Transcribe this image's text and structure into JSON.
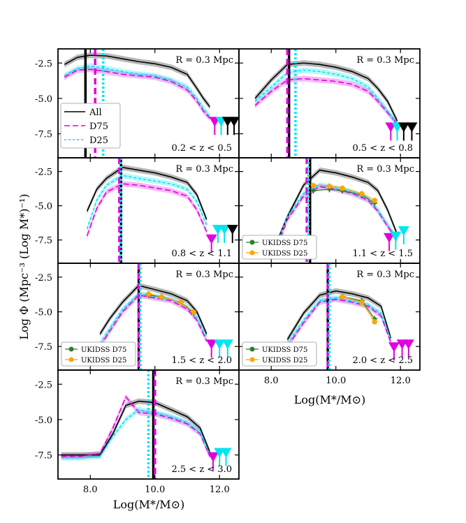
{
  "figure": {
    "xlabel": "Log(M*/M⊙)",
    "ylabel": "Log Φ (Mpc⁻³ (Log M*)⁻¹)"
  },
  "legend_main": {
    "all": "All",
    "d75": "D75",
    "d25": "D25"
  },
  "legend_ukidss": {
    "d75": "UKIDSS D75",
    "d25": "UKIDSS D25"
  },
  "colors": {
    "all": "#000000",
    "d75": "#e000e0",
    "d25": "#00e5ee",
    "ukidss_d75": "#2e7d32",
    "ukidss_d25": "#ffa500"
  },
  "chart_data": [
    {
      "type": "line",
      "panel": 1,
      "radius_label": "R = 0.3 Mpc",
      "z_label": "0.2 < z < 0.5",
      "xlim": [
        7.0,
        12.6
      ],
      "ylim": [
        -9.2,
        -1.5
      ],
      "xticks": [],
      "yticks": [
        "-2.5",
        "-5.0",
        "-7.5"
      ],
      "x": [
        7.2,
        7.6,
        8.0,
        8.5,
        9.0,
        9.5,
        10.0,
        10.5,
        11.0,
        11.3,
        11.5,
        11.7
      ],
      "series": [
        {
          "name": "All",
          "values": [
            -2.6,
            -2.1,
            -1.95,
            -2.0,
            -2.2,
            -2.4,
            -2.55,
            -2.8,
            -3.3,
            -4.3,
            -5.0,
            -5.6
          ]
        },
        {
          "name": "D75",
          "values": [
            -3.5,
            -3.0,
            -2.95,
            -3.1,
            -3.3,
            -3.4,
            -3.5,
            -3.8,
            -4.4,
            -5.2,
            -5.9,
            -6.4
          ]
        },
        {
          "name": "D25",
          "values": [
            -3.4,
            -2.9,
            -2.7,
            -2.9,
            -3.1,
            -3.3,
            -3.4,
            -3.7,
            -4.2,
            -5.0,
            -5.7,
            -6.3
          ]
        }
      ],
      "vlines": {
        "all": 7.85,
        "d75": 8.15,
        "d25": 8.4
      },
      "markers": [
        {
          "x": 11.85,
          "y": -6.6,
          "c": "d75"
        },
        {
          "x": 12.05,
          "y": -6.6,
          "c": "d25"
        },
        {
          "x": 12.25,
          "y": -6.6,
          "c": "all"
        },
        {
          "x": 12.45,
          "y": -6.6,
          "c": "all"
        }
      ]
    },
    {
      "type": "line",
      "panel": 2,
      "radius_label": "R = 0.3 Mpc",
      "z_label": "0.5 < z < 0.8",
      "xlim": [
        7.0,
        12.6
      ],
      "ylim": [
        -9.2,
        -1.5
      ],
      "xticks": [],
      "yticks": [],
      "x": [
        7.5,
        8.0,
        8.5,
        9.0,
        9.5,
        10.0,
        10.5,
        11.0,
        11.3,
        11.6,
        11.9
      ],
      "series": [
        {
          "name": "All",
          "values": [
            -5.0,
            -3.7,
            -2.6,
            -2.5,
            -2.6,
            -2.8,
            -3.1,
            -3.6,
            -4.3,
            -5.2,
            -6.6
          ]
        },
        {
          "name": "D75",
          "values": [
            -5.5,
            -4.5,
            -3.7,
            -3.6,
            -3.7,
            -3.8,
            -4.0,
            -4.5,
            -5.2,
            -6.0,
            -6.8
          ]
        },
        {
          "name": "D25",
          "values": [
            -5.2,
            -4.2,
            -3.2,
            -3.0,
            -3.1,
            -3.3,
            -3.6,
            -4.2,
            -5.0,
            -5.9,
            -6.8
          ]
        }
      ],
      "vlines": {
        "all": 8.55,
        "d75": 8.5,
        "d25": 8.75
      },
      "markers": [
        {
          "x": 11.7,
          "y": -7.0,
          "c": "d75"
        },
        {
          "x": 11.9,
          "y": -7.0,
          "c": "d25"
        },
        {
          "x": 12.1,
          "y": -7.0,
          "c": "all"
        },
        {
          "x": 12.35,
          "y": -7.0,
          "c": "all"
        }
      ]
    },
    {
      "type": "line",
      "panel": 3,
      "radius_label": "R = 0.3 Mpc",
      "z_label": "0.8 < z < 1.1",
      "xlim": [
        7.0,
        12.6
      ],
      "ylim": [
        -9.2,
        -1.5
      ],
      "xticks": [],
      "yticks": [
        "-2.5",
        "-5.0",
        "-7.5"
      ],
      "x": [
        7.9,
        8.2,
        8.5,
        9.0,
        9.5,
        10.0,
        10.5,
        11.0,
        11.3,
        11.6
      ],
      "series": [
        {
          "name": "All",
          "values": [
            -5.4,
            -3.8,
            -3.0,
            -2.2,
            -2.4,
            -2.6,
            -2.9,
            -3.3,
            -4.2,
            -6.0
          ]
        },
        {
          "name": "D75",
          "values": [
            -7.2,
            -5.2,
            -4.0,
            -3.4,
            -3.5,
            -3.7,
            -3.9,
            -4.3,
            -5.3,
            -6.9
          ]
        },
        {
          "name": "D25",
          "values": [
            -6.7,
            -4.6,
            -3.5,
            -2.8,
            -3.0,
            -3.2,
            -3.4,
            -3.8,
            -4.7,
            -6.4
          ]
        }
      ],
      "vlines": {
        "all": 8.95,
        "d75": 8.9,
        "d25": 8.95
      },
      "markers": [
        {
          "x": 11.75,
          "y": -7.4,
          "c": "d75"
        },
        {
          "x": 11.95,
          "y": -6.7,
          "c": "d25"
        },
        {
          "x": 12.15,
          "y": -6.7,
          "c": "d25"
        },
        {
          "x": 12.4,
          "y": -6.7,
          "c": "all"
        }
      ]
    },
    {
      "type": "line",
      "panel": 4,
      "radius_label": "R = 0.3 Mpc",
      "z_label": "1.1 < z < 1.5",
      "xlim": [
        7.0,
        12.6
      ],
      "ylim": [
        -9.2,
        -1.5
      ],
      "xticks": [],
      "yticks": [],
      "x": [
        8.2,
        8.5,
        9.0,
        9.5,
        10.0,
        10.5,
        11.0,
        11.3,
        11.6,
        11.9
      ],
      "series": [
        {
          "name": "All",
          "values": [
            -7.5,
            -5.8,
            -3.5,
            -2.4,
            -2.6,
            -2.9,
            -3.3,
            -3.9,
            -5.3,
            -7.1
          ]
        },
        {
          "name": "D75",
          "values": [
            -7.9,
            -6.0,
            -4.3,
            -3.6,
            -3.8,
            -4.1,
            -4.6,
            -5.4,
            -6.5,
            -7.5
          ]
        },
        {
          "name": "D25",
          "values": [
            -7.6,
            -5.8,
            -4.1,
            -3.5,
            -3.7,
            -4.0,
            -4.5,
            -5.3,
            -6.4,
            -7.4
          ]
        }
      ],
      "ukidss_x": [
        9.3,
        9.8,
        10.2,
        10.8,
        11.2
      ],
      "ukidss": [
        {
          "name": "UKIDSS D75",
          "values": [
            -3.9,
            -3.8,
            -3.9,
            -4.2,
            -4.8
          ]
        },
        {
          "name": "UKIDSS D25",
          "values": [
            -3.5,
            -3.55,
            -3.7,
            -4.1,
            -4.6
          ]
        }
      ],
      "vlines": {
        "all": 9.2,
        "d75": 9.1,
        "d25": 9.15
      },
      "markers": [
        {
          "x": 11.65,
          "y": -7.3,
          "c": "d75"
        },
        {
          "x": 11.85,
          "y": -7.2,
          "c": "d25"
        },
        {
          "x": 12.1,
          "y": -6.8,
          "c": "d25"
        }
      ]
    },
    {
      "type": "line",
      "panel": 5,
      "radius_label": "R = 0.3 Mpc",
      "z_label": "1.5 < z < 2.0",
      "xlim": [
        7.0,
        12.6
      ],
      "ylim": [
        -9.2,
        -1.5
      ],
      "xticks": [],
      "yticks": [
        "-2.5",
        "-5.0",
        "-7.5"
      ],
      "x": [
        8.3,
        8.6,
        9.0,
        9.5,
        10.0,
        10.5,
        11.0,
        11.3,
        11.6
      ],
      "series": [
        {
          "name": "All",
          "values": [
            -6.6,
            -5.5,
            -4.3,
            -3.1,
            -3.4,
            -3.7,
            -4.2,
            -5.0,
            -6.6
          ]
        },
        {
          "name": "D75",
          "values": [
            -7.5,
            -6.4,
            -5.0,
            -3.8,
            -4.0,
            -4.2,
            -4.8,
            -5.6,
            -7.1
          ]
        },
        {
          "name": "D25",
          "values": [
            -7.3,
            -6.2,
            -4.8,
            -3.7,
            -3.9,
            -4.1,
            -4.6,
            -5.4,
            -6.9
          ]
        }
      ],
      "ukidss_x": [
        9.8,
        10.2,
        10.8,
        11.2
      ],
      "ukidss": [
        {
          "name": "UKIDSS D75",
          "values": [
            -3.8,
            -3.9,
            -4.3,
            -5.1
          ]
        },
        {
          "name": "UKIDSS D25",
          "values": [
            -3.7,
            -3.9,
            -4.3,
            -5.0
          ]
        }
      ],
      "vlines": {
        "all": 9.5,
        "d75": 9.5,
        "d25": 9.55
      },
      "markers": [
        {
          "x": 11.75,
          "y": -7.3,
          "c": "d75"
        },
        {
          "x": 12.0,
          "y": -7.3,
          "c": "d25"
        },
        {
          "x": 12.25,
          "y": -7.3,
          "c": "d25"
        }
      ]
    },
    {
      "type": "line",
      "panel": 6,
      "radius_label": "R = 0.3 Mpc",
      "z_label": "2.0 < z < 2.5",
      "xlim": [
        7.0,
        12.6
      ],
      "ylim": [
        -9.2,
        -1.5
      ],
      "xticks": [
        "8.0",
        "10.0",
        "12.0"
      ],
      "yticks": [],
      "x": [
        8.5,
        9.0,
        9.5,
        10.0,
        10.5,
        11.0,
        11.4,
        11.7
      ],
      "series": [
        {
          "name": "All",
          "values": [
            -7.0,
            -5.1,
            -3.8,
            -3.5,
            -3.7,
            -4.0,
            -4.6,
            -6.9
          ]
        },
        {
          "name": "D75",
          "values": [
            -7.5,
            -5.8,
            -4.3,
            -4.1,
            -4.3,
            -4.6,
            -5.3,
            -7.2
          ]
        },
        {
          "name": "D25",
          "values": [
            -7.3,
            -5.6,
            -4.2,
            -4.0,
            -4.2,
            -4.5,
            -5.1,
            -7.0
          ]
        }
      ],
      "ukidss_x": [
        10.2,
        10.8,
        11.2
      ],
      "ukidss": [
        {
          "name": "UKIDSS D75",
          "values": [
            -3.9,
            -4.2,
            -5.5
          ]
        },
        {
          "name": "UKIDSS D25",
          "values": [
            -3.9,
            -4.3,
            -5.7
          ]
        }
      ],
      "vlines": {
        "all": 9.75,
        "d75": 9.75,
        "d25": 9.8
      },
      "markers": [
        {
          "x": 11.8,
          "y": -7.5,
          "c": "d75"
        },
        {
          "x": 12.05,
          "y": -7.3,
          "c": "d75"
        },
        {
          "x": 12.25,
          "y": -7.3,
          "c": "d75"
        }
      ]
    },
    {
      "type": "line",
      "panel": 7,
      "radius_label": "R = 0.3 Mpc",
      "z_label": "2.5 < z < 3.0",
      "xlim": [
        7.0,
        12.6
      ],
      "ylim": [
        -9.2,
        -1.5
      ],
      "xticks": [
        "8.0",
        "10.0",
        "12.0"
      ],
      "yticks": [
        "-2.5",
        "-5.0",
        "-7.5"
      ],
      "x": [
        7.1,
        7.7,
        8.3,
        8.7,
        9.1,
        9.5,
        10.0,
        10.5,
        11.0,
        11.4,
        11.7
      ],
      "series": [
        {
          "name": "All",
          "values": [
            -7.5,
            -7.5,
            -7.5,
            -6.0,
            -4.0,
            -3.7,
            -3.8,
            -4.3,
            -4.8,
            -5.6,
            -7.3
          ]
        },
        {
          "name": "D75",
          "values": [
            -7.6,
            -7.6,
            -7.4,
            -5.6,
            -3.4,
            -4.5,
            -4.6,
            -4.9,
            -5.3,
            -6.0,
            -7.6
          ]
        },
        {
          "name": "D25",
          "values": [
            -7.7,
            -7.7,
            -7.6,
            -6.2,
            -5.0,
            -4.3,
            -4.5,
            -4.8,
            -5.2,
            -5.9,
            -7.5
          ]
        }
      ],
      "vlines": {
        "all": 9.95,
        "d75": 10.0,
        "d25": 9.8
      },
      "markers": [
        {
          "x": 11.8,
          "y": -7.6,
          "c": "d75"
        },
        {
          "x": 12.0,
          "y": -7.3,
          "c": "d25"
        },
        {
          "x": 12.2,
          "y": -7.3,
          "c": "d25"
        }
      ]
    }
  ]
}
